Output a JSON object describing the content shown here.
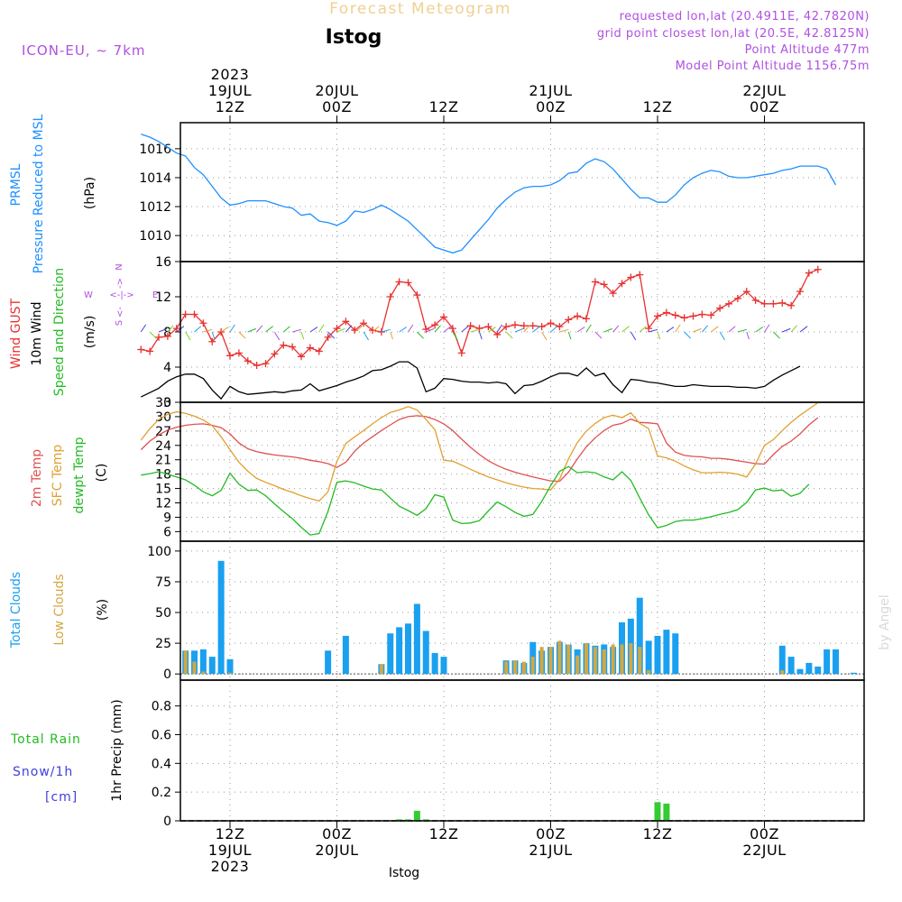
{
  "header": {
    "title": "Forecast Meteogram",
    "location": "Istog",
    "model": "ICON-EU, ~ 7km",
    "requested": "requested lon,lat (20.4911E, 42.7820N)",
    "gridpoint": "grid point closest lon,lat (20.5E, 42.8125N)",
    "point_alt": "Point Altitude 477m",
    "model_alt": "Model Point Altitude 1156.75m",
    "footer": "Istog",
    "watermark": "by Angel"
  },
  "time_axis": {
    "top_ticks": [
      {
        "hour": 12,
        "lines": [
          "2023",
          "19JUL",
          "12Z"
        ]
      },
      {
        "hour": 24,
        "lines": [
          "20JUL",
          "00Z"
        ]
      },
      {
        "hour": 36,
        "lines": [
          "12Z"
        ]
      },
      {
        "hour": 48,
        "lines": [
          "21JUL",
          "00Z"
        ]
      },
      {
        "hour": 60,
        "lines": [
          "12Z"
        ]
      },
      {
        "hour": 72,
        "lines": [
          "22JUL",
          "00Z"
        ]
      }
    ],
    "bottom_ticks": [
      {
        "hour": 12,
        "lines": [
          "12Z",
          "19JUL",
          "2023"
        ]
      },
      {
        "hour": 24,
        "lines": [
          "00Z",
          "20JUL"
        ]
      },
      {
        "hour": 36,
        "lines": [
          "12Z"
        ]
      },
      {
        "hour": 48,
        "lines": [
          "00Z",
          "21JUL"
        ]
      },
      {
        "hour": 60,
        "lines": [
          "12Z"
        ]
      },
      {
        "hour": 72,
        "lines": [
          "00Z",
          "22JUL"
        ]
      }
    ]
  },
  "panel_labels": {
    "pressure": {
      "name1": "PRMSL",
      "name2": "Pressure Reduced to MSL",
      "unit": "(hPa)"
    },
    "wind": {
      "gust": "Wind GUST",
      "wind10": "10m Wind",
      "dir": "Speed and Direction",
      "unit": "(m/s)"
    },
    "temp": {
      "t2m": "2m Temp",
      "sfc": "SFC Temp",
      "dew": "dewpt Temp",
      "unit": "(C)"
    },
    "clouds": {
      "total": "Total Clouds",
      "low": "Low Clouds",
      "unit": "(%)"
    },
    "precip": {
      "rain": "Total  Rain",
      "snow": "Snow/1h",
      "cm": "[cm]",
      "axis": "1hr Precip (mm)"
    }
  },
  "compass": {
    "n": "N",
    "s": "S",
    "w": "W",
    "e": "E"
  },
  "colors": {
    "pressure": "#1e90ff",
    "gust": "#e83030",
    "wind": "#000000",
    "t2m": "#e05050",
    "sfc": "#e0a030",
    "dew": "#22bb22",
    "total_cloud": "#1aa0f0",
    "low_cloud": "#d4a840",
    "rain": "#33cc33",
    "purple": "#b050e0"
  },
  "chart_data": [
    {
      "type": "line",
      "title": "PRMSL",
      "ylabel": "(hPa)",
      "ylim": [
        1008.2,
        1017.8
      ],
      "yticks": [
        1010,
        1012,
        1014,
        1016
      ],
      "x_hours_start": 2,
      "x_hours_step": 1,
      "series": [
        {
          "name": "PRMSL",
          "values": [
            1017.0,
            1016.8,
            1016.5,
            1016.1,
            1015.7,
            1015.5,
            1014.7,
            1014.2,
            1013.4,
            1012.6,
            1012.1,
            1012.2,
            1012.4,
            1012.4,
            1012.4,
            1012.2,
            1012.0,
            1011.9,
            1011.4,
            1011.5,
            1011.0,
            1010.9,
            1010.7,
            1011.0,
            1011.7,
            1011.6,
            1011.8,
            1012.1,
            1011.8,
            1011.4,
            1011.0,
            1010.4,
            1009.8,
            1009.2,
            1009.0,
            1008.8,
            1009.0,
            1009.7,
            1010.4,
            1011.1,
            1011.9,
            1012.5,
            1013.0,
            1013.3,
            1013.4,
            1013.4,
            1013.5,
            1013.8,
            1014.3,
            1014.4,
            1015.0,
            1015.3,
            1015.1,
            1014.6,
            1013.9,
            1013.2,
            1012.6,
            1012.6,
            1012.3,
            1012.3,
            1012.8,
            1013.5,
            1014.0,
            1014.3,
            1014.5,
            1014.4,
            1014.1,
            1014.0,
            1014.0,
            1014.1,
            1014.2,
            1014.3,
            1014.5,
            1014.6,
            1014.8,
            1014.8,
            1014.8,
            1014.6,
            1013.5
          ]
        }
      ]
    },
    {
      "type": "line",
      "title": "Wind",
      "ylabel": "(m/s)",
      "ylim": [
        0,
        16
      ],
      "yticks": [
        0,
        4,
        8,
        12,
        16
      ],
      "x_hours_start": 2,
      "x_hours_step": 1,
      "series": [
        {
          "name": "Wind GUST",
          "values": [
            6.0,
            5.8,
            7.4,
            7.5,
            8.4,
            10.0,
            10.0,
            9.0,
            6.9,
            8.0,
            5.3,
            5.6,
            4.7,
            4.2,
            4.4,
            5.5,
            6.5,
            6.3,
            5.2,
            6.2,
            5.8,
            7.4,
            8.4,
            9.2,
            8.2,
            9.0,
            8.2,
            8.0,
            12.0,
            13.7,
            13.6,
            12.2,
            8.3,
            8.8,
            9.7,
            8.4,
            5.6,
            8.7,
            8.4,
            8.6,
            7.7,
            8.6,
            8.8,
            8.7,
            8.7,
            8.6,
            9.0,
            8.6,
            9.4,
            9.8,
            9.5,
            13.7,
            13.4,
            12.4,
            13.5,
            14.2,
            14.5,
            8.4,
            9.8,
            10.2,
            9.9,
            9.6,
            9.8,
            10.0,
            9.9,
            10.7,
            11.2,
            11.8,
            12.6,
            11.6,
            11.2,
            11.2,
            11.3,
            11.0,
            12.6,
            14.7,
            15.1
          ]
        },
        {
          "name": "10m Wind",
          "values": [
            0.6,
            1.1,
            1.6,
            2.4,
            2.9,
            3.2,
            3.2,
            2.7,
            1.4,
            0.4,
            1.8,
            1.2,
            0.9,
            1.0,
            1.1,
            1.2,
            1.1,
            1.3,
            1.4,
            2.1,
            1.3,
            1.6,
            1.9,
            2.3,
            2.6,
            3.0,
            3.6,
            3.7,
            4.1,
            4.6,
            4.6,
            3.9,
            1.2,
            1.6,
            2.7,
            2.6,
            2.4,
            2.3,
            2.3,
            2.2,
            2.3,
            2.1,
            1.0,
            1.9,
            2.0,
            2.4,
            2.9,
            3.3,
            3.3,
            3.0,
            3.9,
            3.0,
            3.3,
            2.0,
            1.1,
            2.6,
            2.5,
            2.3,
            2.2,
            2.0,
            1.8,
            1.8,
            2.0,
            1.9,
            1.8,
            1.8,
            1.8,
            1.7,
            1.7,
            1.6,
            1.8,
            2.5,
            3.1,
            3.6,
            4.1
          ]
        }
      ],
      "barbs_note": "Direction arrows along 8 m/s line"
    },
    {
      "type": "line",
      "title": "Temperature",
      "ylabel": "(C)",
      "ylim": [
        4,
        33
      ],
      "yticks": [
        6,
        9,
        12,
        15,
        18,
        21,
        24,
        27,
        30,
        33
      ],
      "x_hours_start": 2,
      "x_hours_step": 1,
      "series": [
        {
          "name": "2m Temp",
          "values": [
            23.1,
            24.9,
            26.2,
            27.2,
            27.8,
            28.2,
            28.4,
            28.5,
            28.2,
            27.7,
            26.4,
            24.5,
            23.3,
            22.7,
            22.3,
            22.0,
            21.8,
            21.6,
            21.3,
            20.9,
            20.6,
            20.2,
            19.4,
            20.5,
            22.8,
            24.5,
            25.8,
            27.1,
            28.3,
            29.4,
            30.0,
            30.2,
            30.0,
            29.4,
            28.5,
            27.1,
            25.3,
            23.6,
            22.1,
            20.8,
            19.8,
            19.0,
            18.4,
            17.9,
            17.4,
            17.0,
            16.6,
            16.5,
            18.4,
            21.2,
            23.7,
            25.6,
            27.1,
            28.2,
            28.6,
            29.5,
            28.8,
            28.7,
            28.5,
            24.5,
            22.6,
            21.9,
            21.7,
            21.6,
            21.3,
            21.3,
            21.1,
            20.8,
            20.5,
            20.2,
            20.1,
            22.1,
            23.8,
            24.9,
            26.4,
            28.3,
            29.8
          ]
        },
        {
          "name": "SFC Temp",
          "values": [
            25.1,
            27.5,
            29.4,
            30.5,
            31.0,
            30.7,
            30.1,
            29.3,
            28.1,
            25.8,
            23.1,
            20.5,
            18.6,
            17.1,
            16.3,
            15.6,
            14.8,
            14.2,
            13.5,
            12.9,
            12.4,
            14.3,
            20.7,
            24.4,
            25.8,
            27.1,
            28.5,
            29.8,
            30.9,
            31.4,
            32.1,
            31.4,
            29.4,
            27.3,
            20.9,
            20.7,
            19.9,
            19.0,
            18.2,
            17.4,
            16.8,
            16.2,
            15.7,
            15.3,
            15.0,
            14.9,
            14.7,
            17.0,
            21.2,
            24.6,
            27.0,
            28.6,
            29.8,
            30.3,
            29.8,
            30.8,
            28.6,
            27.5,
            21.8,
            21.4,
            20.7,
            19.7,
            18.9,
            18.3,
            18.3,
            18.4,
            18.3,
            18.0,
            17.4,
            20.1,
            24.0,
            25.2,
            27.1,
            28.8,
            30.3,
            31.6,
            32.9
          ]
        },
        {
          "name": "dewpt Temp",
          "values": [
            17.8,
            18.1,
            18.5,
            18.0,
            17.4,
            16.8,
            15.7,
            14.3,
            13.5,
            14.6,
            18.2,
            15.9,
            14.6,
            14.7,
            13.5,
            11.8,
            10.2,
            8.7,
            6.9,
            5.3,
            5.6,
            10.2,
            16.3,
            16.6,
            16.2,
            15.5,
            14.9,
            14.7,
            13.0,
            11.3,
            10.4,
            9.4,
            10.8,
            13.7,
            13.2,
            8.4,
            7.7,
            7.8,
            8.3,
            10.3,
            12.2,
            11.2,
            10.0,
            9.2,
            9.6,
            12.3,
            15.6,
            18.6,
            19.6,
            18.3,
            18.5,
            18.3,
            17.4,
            16.8,
            18.5,
            16.7,
            13.0,
            9.5,
            6.8,
            7.3,
            8.1,
            8.4,
            8.4,
            8.7,
            9.1,
            9.6,
            10.0,
            10.6,
            12.1,
            14.7,
            15.1,
            14.5,
            14.7,
            13.4,
            14.0,
            15.9
          ]
        }
      ]
    },
    {
      "type": "bar",
      "title": "Clouds",
      "ylabel": "(%)",
      "ylim": [
        -5,
        108
      ],
      "yticks": [
        0,
        25,
        50,
        75,
        100
      ],
      "x_hours_start": 2,
      "x_hours_step": 1,
      "series": [
        {
          "name": "Total Clouds",
          "values": [
            0,
            0,
            0,
            0,
            0,
            19,
            19,
            20,
            14,
            92,
            12,
            0,
            0,
            0,
            0,
            0,
            0,
            0,
            0,
            0,
            0,
            19,
            0,
            31,
            0,
            0,
            0,
            8,
            33,
            38,
            41,
            57,
            35,
            17,
            14,
            0,
            0,
            0,
            0,
            0,
            0,
            11,
            11,
            9,
            26,
            19,
            22,
            26,
            24,
            20,
            25,
            23,
            24,
            22,
            42,
            45,
            62,
            27,
            31,
            36,
            33,
            0,
            0,
            0,
            0,
            0,
            0,
            0,
            0,
            0,
            0,
            0,
            23,
            14,
            4,
            9,
            6,
            20,
            20,
            0,
            1,
            0
          ]
        },
        {
          "name": "Low Clouds",
          "values": [
            0,
            0,
            0,
            0,
            0,
            19,
            10,
            2,
            0,
            0,
            1,
            0,
            0,
            0,
            0,
            0,
            0,
            0,
            0,
            0,
            0,
            0,
            0,
            0,
            0,
            0,
            0,
            8,
            0,
            0,
            0,
            0,
            0,
            0,
            0,
            0,
            0,
            0,
            0,
            0,
            0,
            10,
            11,
            10,
            14,
            22,
            22,
            27,
            24,
            15,
            25,
            22,
            20,
            24,
            24,
            25,
            22,
            3,
            0,
            0,
            0,
            0,
            0,
            0,
            0,
            0,
            0,
            0,
            0,
            0,
            0,
            0,
            3,
            0,
            0,
            0,
            0,
            0,
            0,
            0,
            0,
            0
          ]
        }
      ]
    },
    {
      "type": "bar",
      "title": "1hr Precip",
      "ylabel": "1hr Precip (mm)",
      "ylim": [
        0,
        0.98
      ],
      "yticks": [
        0,
        0.2,
        0.4,
        0.6,
        0.8
      ],
      "x_hours_start": 2,
      "x_hours_step": 1,
      "series": [
        {
          "name": "Total Rain",
          "values": [
            0,
            0,
            0,
            0,
            0,
            0,
            0,
            0,
            0,
            0,
            0,
            0,
            0,
            0,
            0,
            0,
            0,
            0,
            0,
            0,
            0,
            0,
            0,
            0,
            0,
            0,
            0,
            0,
            0,
            0.01,
            0.01,
            0.07,
            0.01,
            0,
            0,
            0,
            0,
            0,
            0,
            0,
            0,
            0,
            0,
            0,
            0,
            0,
            0,
            0,
            0,
            0,
            0,
            0,
            0,
            0,
            0,
            0,
            0,
            0,
            0.13,
            0.12,
            0,
            0,
            0,
            0,
            0,
            0,
            0,
            0,
            0,
            0,
            0,
            0,
            0,
            0,
            0,
            0,
            0,
            0
          ]
        }
      ]
    }
  ]
}
